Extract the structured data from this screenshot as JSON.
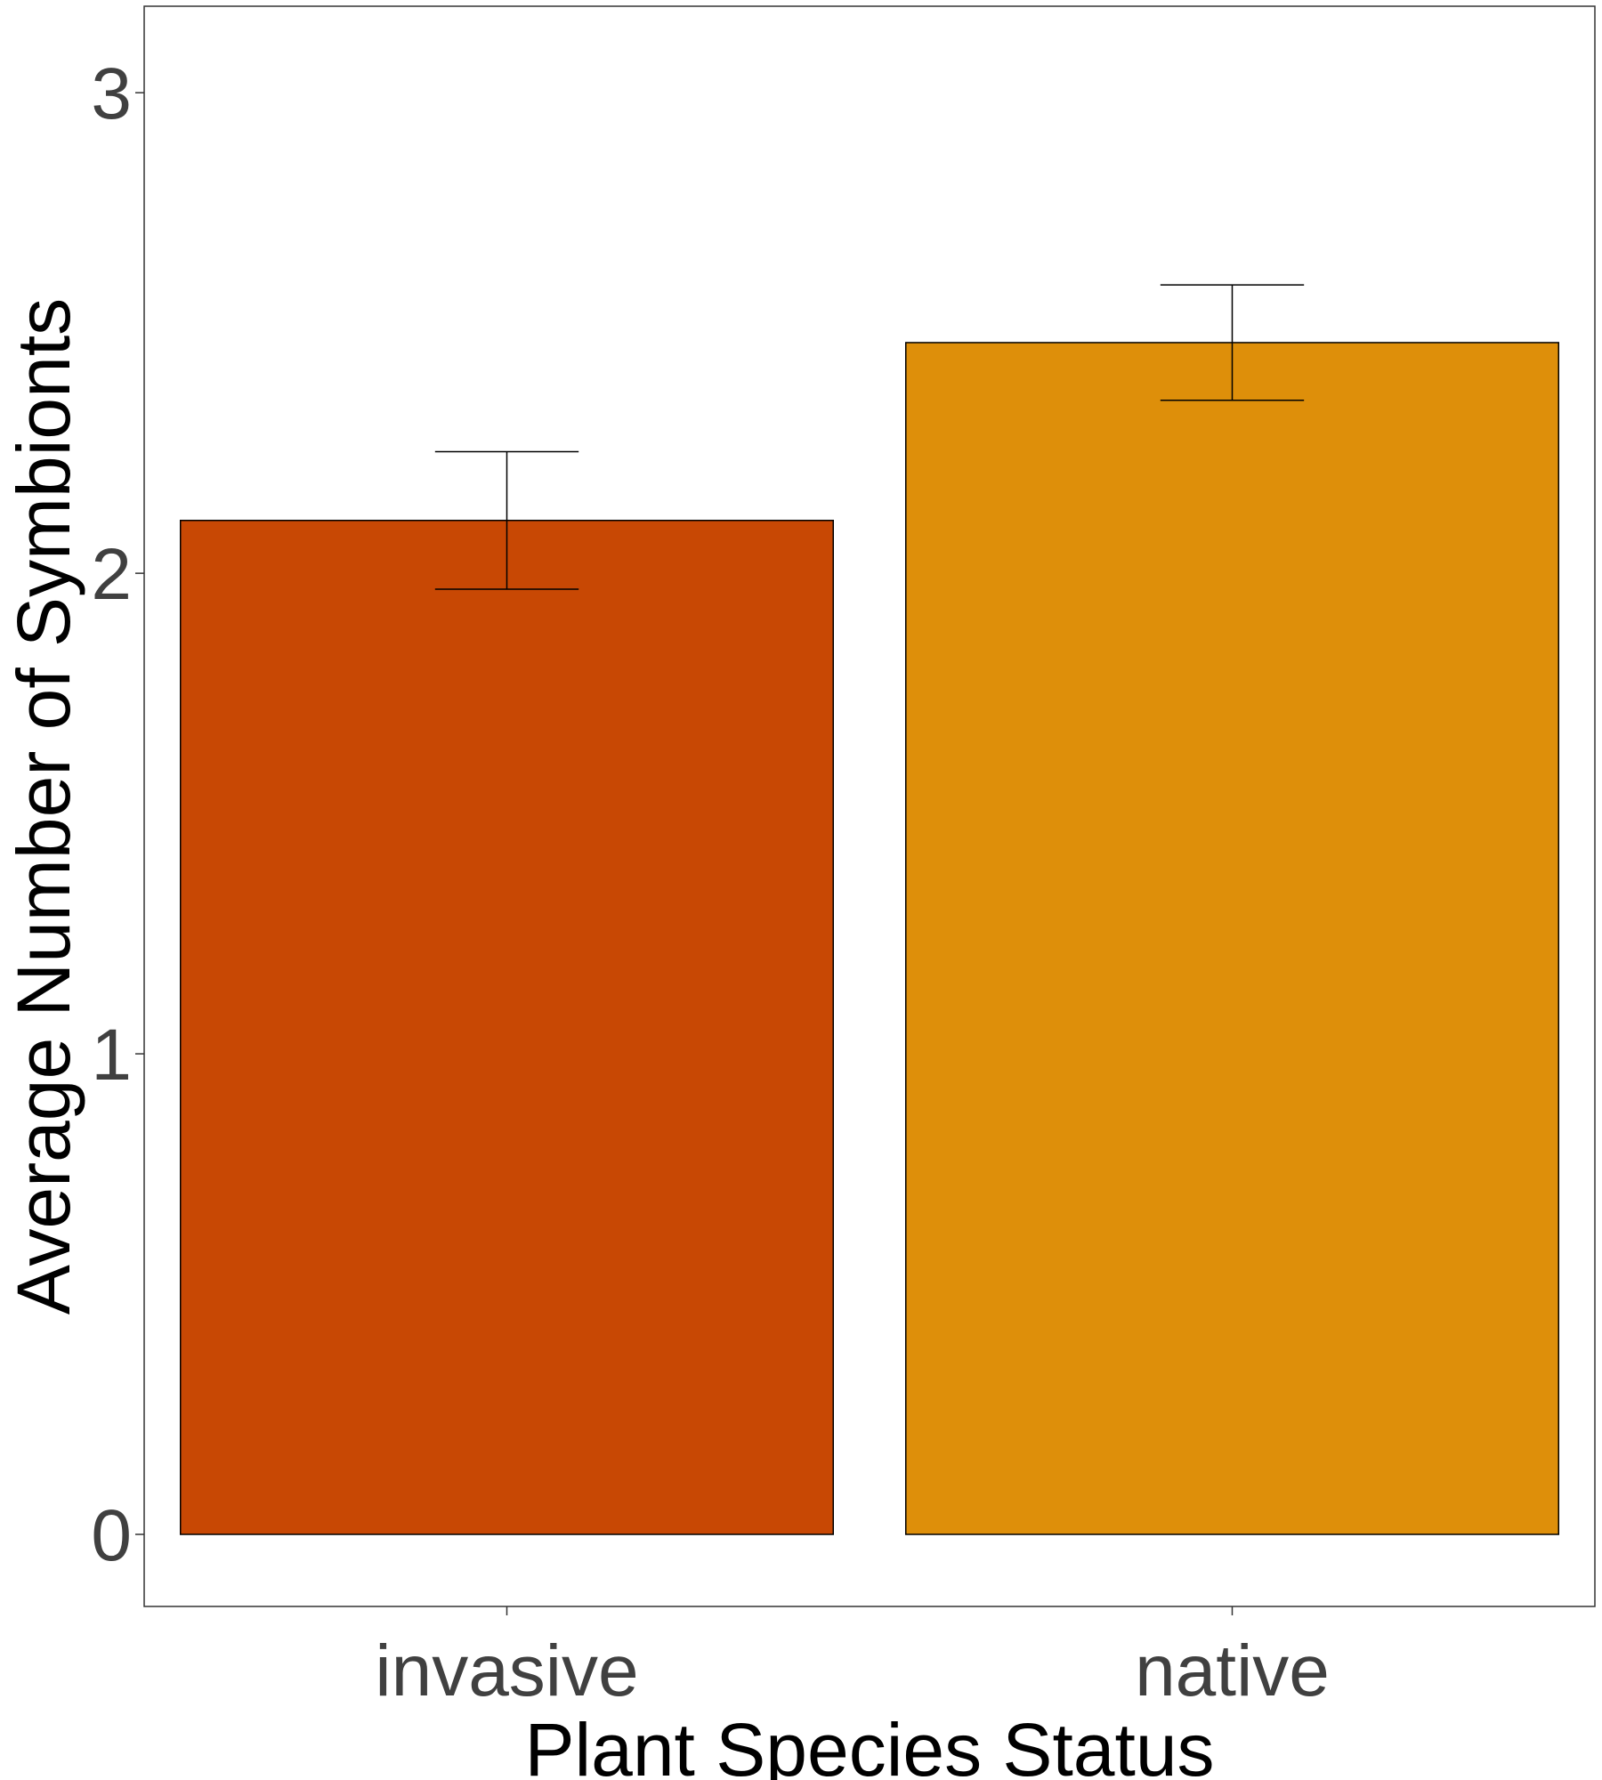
{
  "chart_data": {
    "type": "bar",
    "title": "",
    "xlabel": "Plant Species Status",
    "ylabel": "Average Number of Symbionts",
    "categories": [
      "invasive",
      "native"
    ],
    "values": [
      2.11,
      2.48
    ],
    "error": [
      0.143,
      0.12
    ],
    "colors": [
      "#C84804",
      "#DE8F0A"
    ],
    "ylim": [
      -0.15,
      3.18
    ],
    "yticks": [
      0,
      1,
      2,
      3
    ],
    "grid": false,
    "legend": "none"
  }
}
